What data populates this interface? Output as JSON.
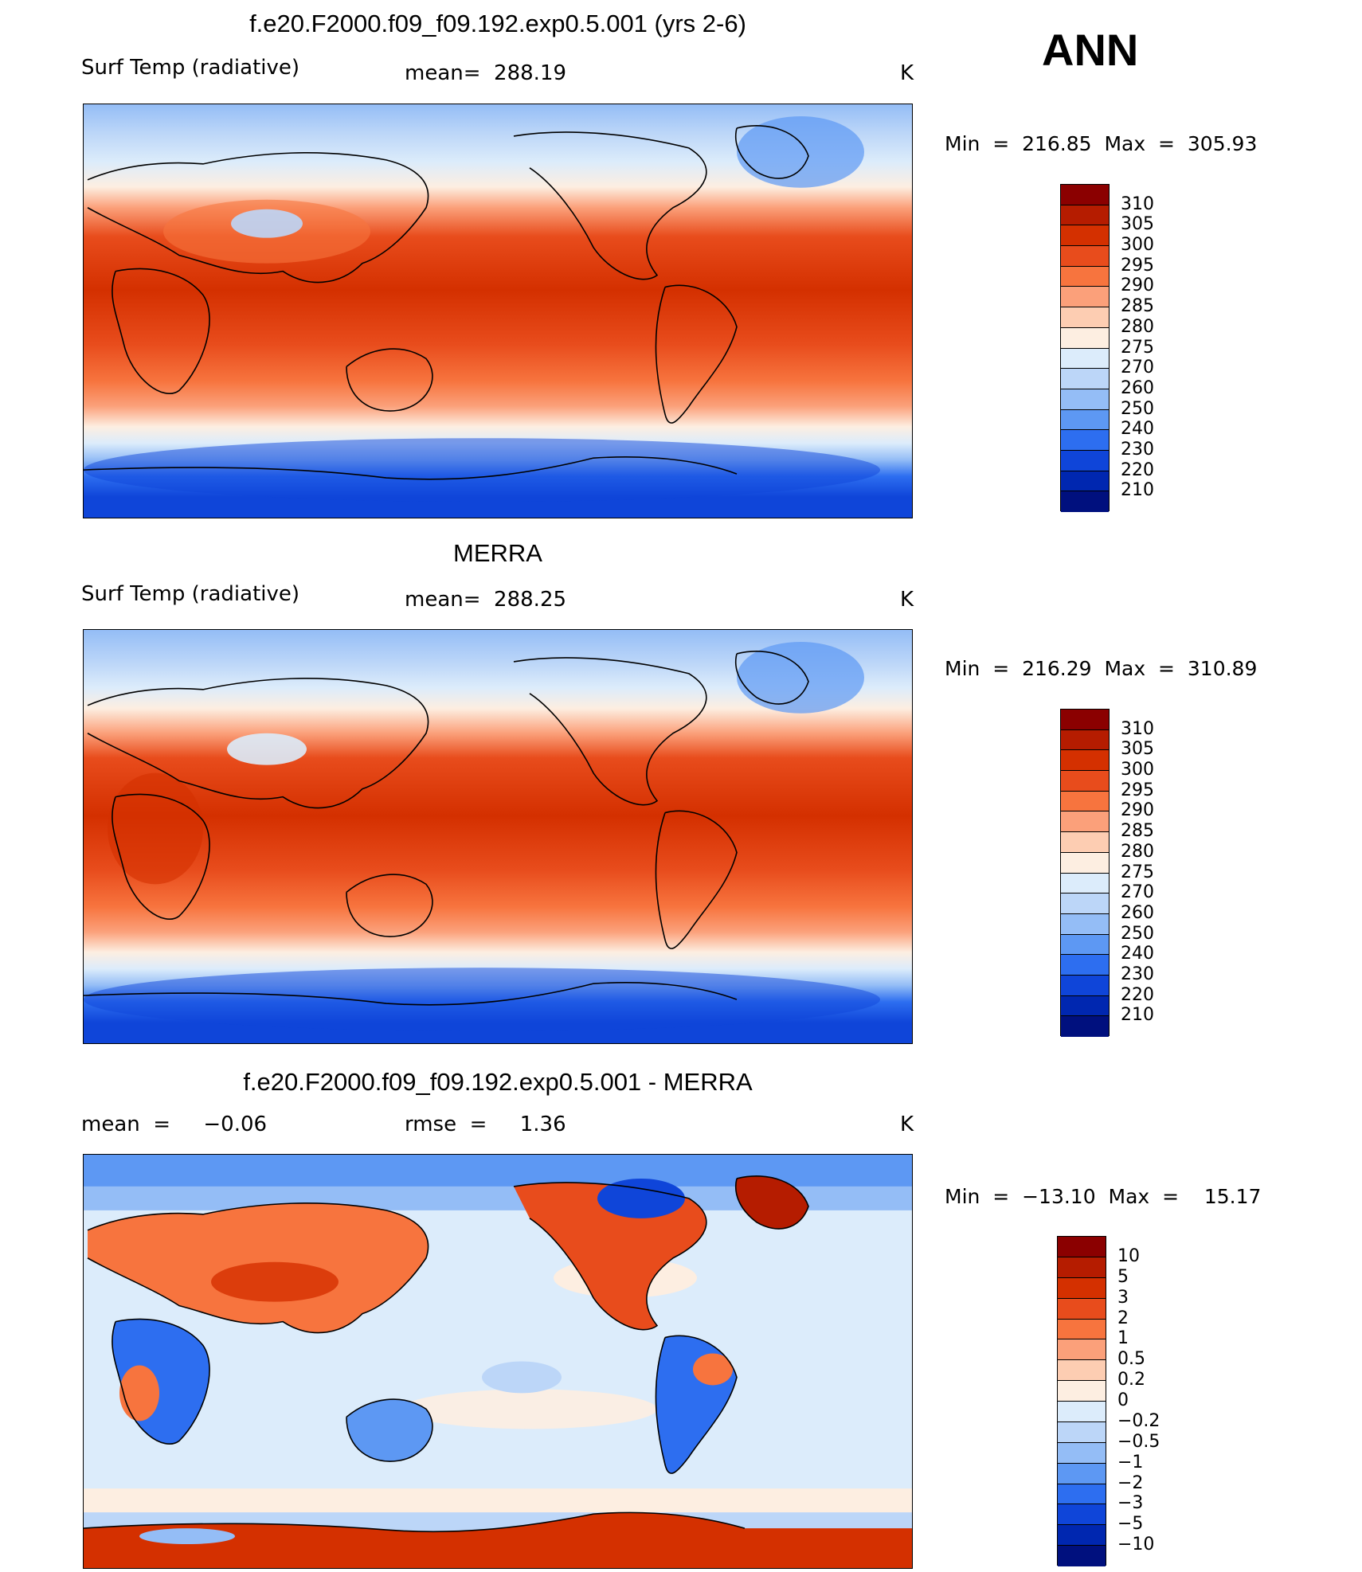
{
  "season": "ANN",
  "colors": {
    "abs_scale": [
      "#8b0000",
      "#b51c00",
      "#d43000",
      "#e84c1c",
      "#f7743e",
      "#fba07a",
      "#fdcdb2",
      "#fdeee1",
      "#dcecfb",
      "#bcd6f8",
      "#94bdf6",
      "#5d98f3",
      "#2d6ef0",
      "#0f45d9",
      "#0027b0",
      "#00107e"
    ],
    "diff_scale": [
      "#8b0000",
      "#b51c00",
      "#d43000",
      "#e84c1c",
      "#f7743e",
      "#fba07a",
      "#fdcdb2",
      "#fdeee1",
      "#dcecfb",
      "#bcd6f8",
      "#94bdf6",
      "#5d98f3",
      "#2d6ef0",
      "#0f45d9",
      "#0027b0",
      "#00107e"
    ]
  },
  "panels": [
    {
      "title": "f.e20.F2000.f09_f09.192.exp0.5.001 (yrs 2-6)",
      "left_label": "Surf Temp (radiative)",
      "center_label": "mean=  288.19",
      "units": "K",
      "minmax": "Min  =  216.85  Max  =  305.93",
      "colorbar_labels": [
        "310",
        "305",
        "300",
        "295",
        "290",
        "285",
        "280",
        "275",
        "270",
        "260",
        "250",
        "240",
        "230",
        "220",
        "210"
      ]
    },
    {
      "title": "MERRA",
      "left_label": "Surf Temp (radiative)",
      "center_label": "mean=  288.25",
      "units": "K",
      "minmax": "Min  =  216.29  Max  =  310.89",
      "colorbar_labels": [
        "310",
        "305",
        "300",
        "295",
        "290",
        "285",
        "280",
        "275",
        "270",
        "260",
        "250",
        "240",
        "230",
        "220",
        "210"
      ]
    },
    {
      "title": "f.e20.F2000.f09_f09.192.exp0.5.001 - MERRA",
      "left_label": "mean  =     −0.06",
      "center_label": "rmse  =     1.36",
      "units": "K",
      "minmax": "Min  =  −13.10  Max  =    15.17",
      "colorbar_labels": [
        "10",
        "5",
        "3",
        "2",
        "1",
        "0.5",
        "0.2",
        "0",
        "−0.2",
        "−0.5",
        "−1",
        "−2",
        "−3",
        "−5",
        "−10"
      ]
    }
  ]
}
